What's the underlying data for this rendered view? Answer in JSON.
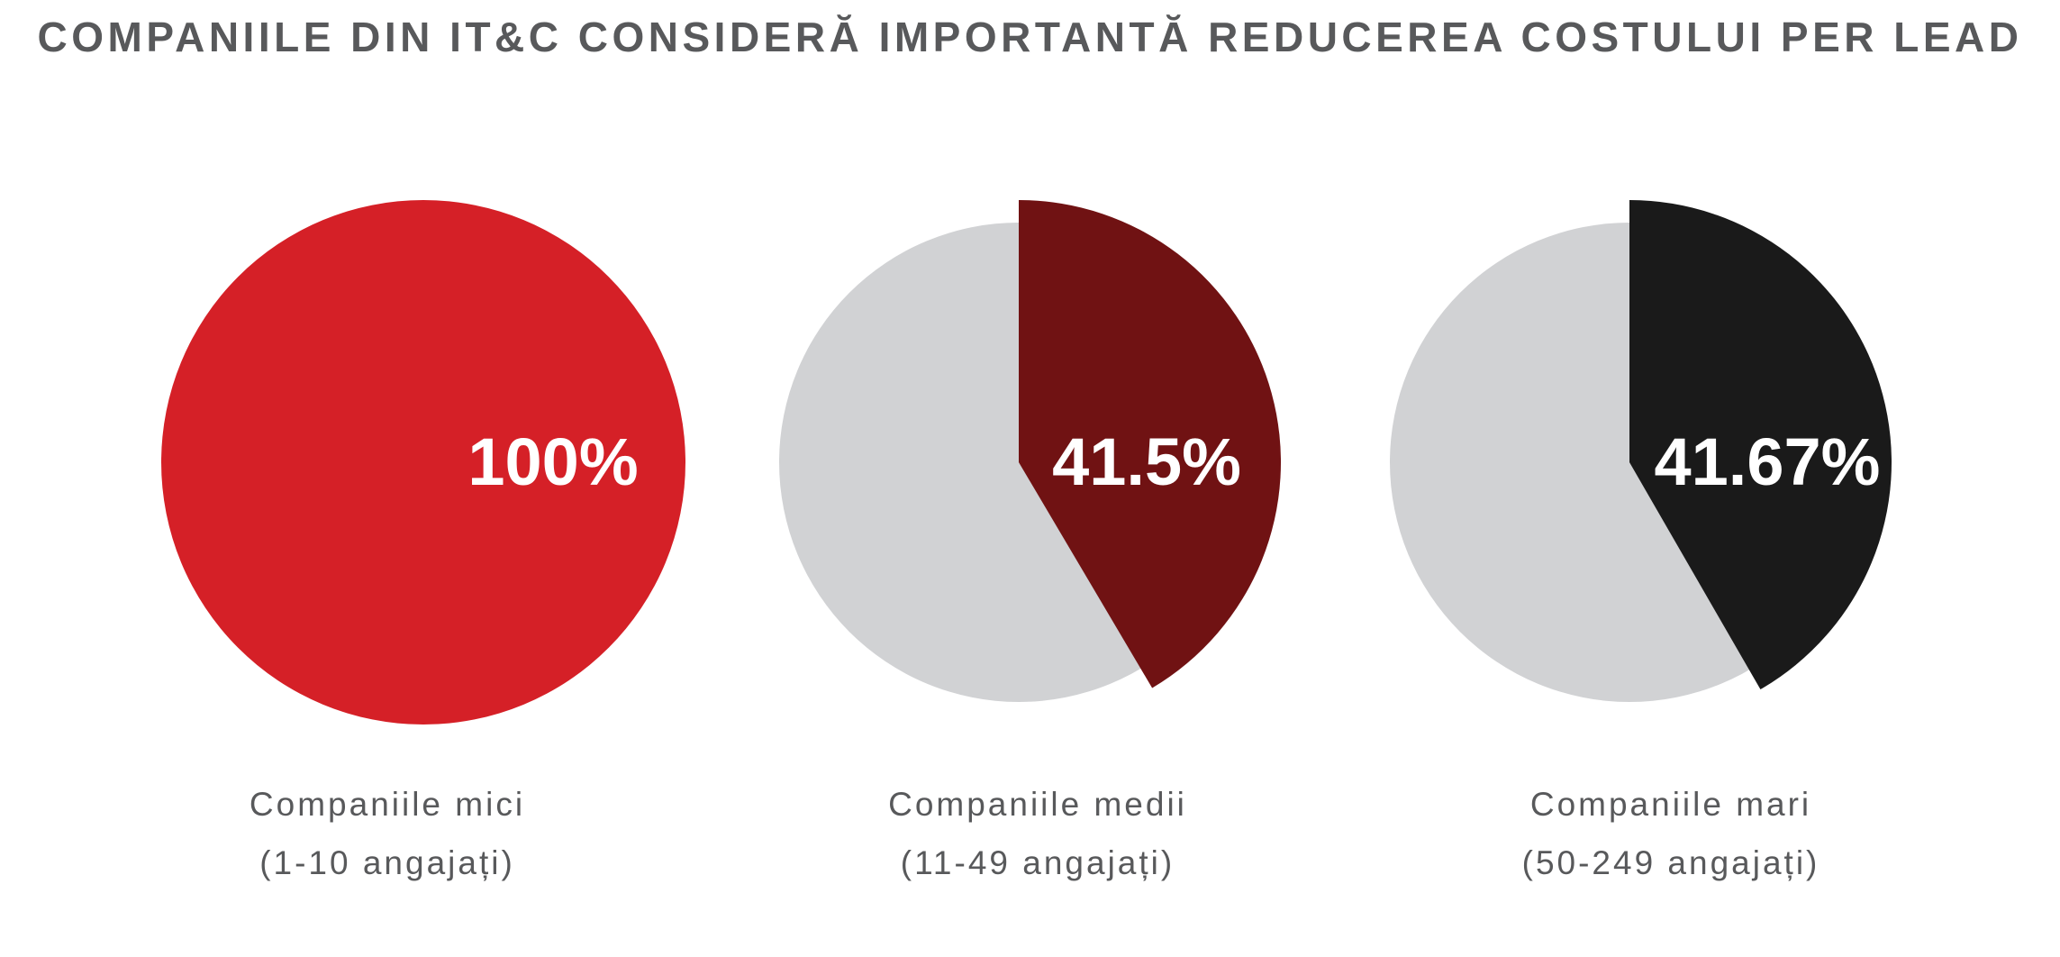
{
  "chart_data": {
    "type": "pie",
    "title": "COMPANIILE DIN IT&C CONSIDERĂ IMPORTANTĂ REDUCEREA COSTULUI PER LEAD",
    "pies": [
      {
        "value": 100,
        "value_label": "100%",
        "label_line1": "Companiile mici",
        "label_line2": "(1-10 angajați)",
        "color": "#d52027"
      },
      {
        "value": 41.5,
        "value_label": "41.5%",
        "label_line1": "Companiile medii",
        "label_line2": "(11-49 angajați)",
        "color": "#701213"
      },
      {
        "value": 41.67,
        "value_label": "41.67%",
        "label_line1": "Companiile mari",
        "label_line2": "(50-249 angajați)",
        "color": "#1a1a1a"
      }
    ],
    "remainder_color": "#d1d2d4"
  }
}
